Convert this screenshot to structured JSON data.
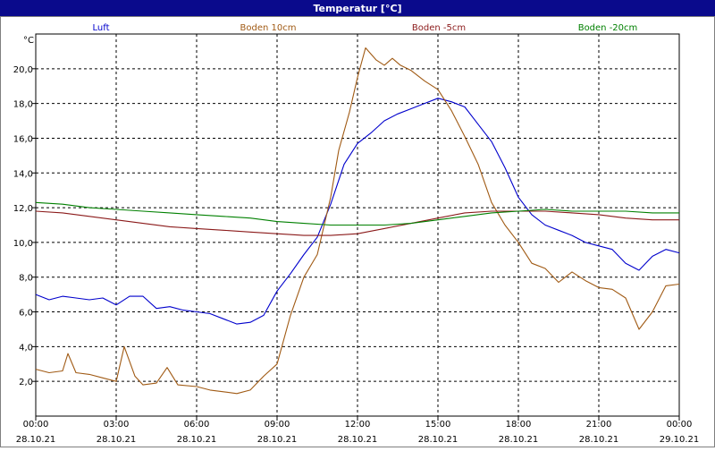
{
  "chart_data": {
    "type": "line",
    "title": "Temperatur [°C]",
    "ylabel": "°C",
    "ylim": [
      0,
      22
    ],
    "yticks": [
      2,
      4,
      6,
      8,
      10,
      12,
      14,
      16,
      18,
      20
    ],
    "ytick_labels": [
      "2,0",
      "4,0",
      "6,0",
      "8,0",
      "10,0",
      "12,0",
      "14,0",
      "16,0",
      "18,0",
      "20,0"
    ],
    "x_ticks": [
      {
        "time": "00:00",
        "date": "28.10.21"
      },
      {
        "time": "03:00",
        "date": "28.10.21"
      },
      {
        "time": "06:00",
        "date": "28.10.21"
      },
      {
        "time": "09:00",
        "date": "28.10.21"
      },
      {
        "time": "12:00",
        "date": "28.10.21"
      },
      {
        "time": "15:00",
        "date": "28.10.21"
      },
      {
        "time": "18:00",
        "date": "28.10.21"
      },
      {
        "time": "21:00",
        "date": "28.10.21"
      },
      {
        "time": "00:00",
        "date": "29.10.21"
      }
    ],
    "x_unit_note": "hours from 00:00 28.10.21",
    "grid": true,
    "legend_position": "top",
    "series": [
      {
        "name": "Luft",
        "color": "#0000cc",
        "points": [
          [
            0.0,
            7.0
          ],
          [
            0.5,
            6.7
          ],
          [
            1.0,
            6.9
          ],
          [
            1.5,
            6.8
          ],
          [
            2.0,
            6.7
          ],
          [
            2.5,
            6.8
          ],
          [
            3.0,
            6.4
          ],
          [
            3.5,
            6.9
          ],
          [
            4.0,
            6.9
          ],
          [
            4.5,
            6.2
          ],
          [
            5.0,
            6.3
          ],
          [
            5.5,
            6.1
          ],
          [
            6.0,
            6.0
          ],
          [
            6.5,
            5.9
          ],
          [
            7.0,
            5.6
          ],
          [
            7.5,
            5.3
          ],
          [
            8.0,
            5.4
          ],
          [
            8.5,
            5.8
          ],
          [
            9.0,
            7.2
          ],
          [
            9.5,
            8.2
          ],
          [
            10.0,
            9.3
          ],
          [
            10.5,
            10.3
          ],
          [
            11.0,
            12.2
          ],
          [
            11.5,
            14.5
          ],
          [
            12.0,
            15.7
          ],
          [
            12.5,
            16.3
          ],
          [
            13.0,
            17.0
          ],
          [
            13.5,
            17.4
          ],
          [
            14.0,
            17.7
          ],
          [
            14.5,
            18.0
          ],
          [
            15.0,
            18.3
          ],
          [
            15.5,
            18.1
          ],
          [
            16.0,
            17.8
          ],
          [
            16.5,
            16.8
          ],
          [
            17.0,
            15.8
          ],
          [
            17.5,
            14.3
          ],
          [
            18.0,
            12.6
          ],
          [
            18.5,
            11.6
          ],
          [
            19.0,
            11.0
          ],
          [
            19.5,
            10.7
          ],
          [
            20.0,
            10.4
          ],
          [
            20.5,
            10.0
          ],
          [
            21.0,
            9.8
          ],
          [
            21.5,
            9.6
          ],
          [
            22.0,
            8.8
          ],
          [
            22.5,
            8.4
          ],
          [
            23.0,
            9.2
          ],
          [
            23.5,
            9.6
          ],
          [
            24.0,
            9.4
          ]
        ]
      },
      {
        "name": "Boden 10cm",
        "color": "#a05a14",
        "points": [
          [
            0.0,
            2.7
          ],
          [
            0.5,
            2.5
          ],
          [
            1.0,
            2.6
          ],
          [
            1.2,
            3.6
          ],
          [
            1.5,
            2.5
          ],
          [
            2.0,
            2.4
          ],
          [
            2.5,
            2.2
          ],
          [
            3.0,
            2.0
          ],
          [
            3.3,
            4.0
          ],
          [
            3.7,
            2.3
          ],
          [
            4.0,
            1.8
          ],
          [
            4.5,
            1.9
          ],
          [
            4.9,
            2.8
          ],
          [
            5.3,
            1.8
          ],
          [
            6.0,
            1.7
          ],
          [
            6.5,
            1.5
          ],
          [
            7.0,
            1.4
          ],
          [
            7.5,
            1.3
          ],
          [
            8.0,
            1.5
          ],
          [
            8.5,
            2.3
          ],
          [
            9.0,
            3.0
          ],
          [
            9.5,
            5.8
          ],
          [
            10.0,
            8.0
          ],
          [
            10.5,
            9.3
          ],
          [
            11.0,
            12.6
          ],
          [
            11.3,
            15.3
          ],
          [
            11.7,
            17.5
          ],
          [
            12.0,
            19.5
          ],
          [
            12.3,
            21.2
          ],
          [
            12.7,
            20.5
          ],
          [
            13.0,
            20.2
          ],
          [
            13.3,
            20.6
          ],
          [
            13.6,
            20.2
          ],
          [
            14.0,
            19.9
          ],
          [
            14.5,
            19.3
          ],
          [
            15.0,
            18.8
          ],
          [
            15.5,
            17.6
          ],
          [
            16.0,
            16.1
          ],
          [
            16.5,
            14.5
          ],
          [
            17.0,
            12.3
          ],
          [
            17.5,
            11.0
          ],
          [
            18.0,
            10.0
          ],
          [
            18.5,
            8.8
          ],
          [
            19.0,
            8.5
          ],
          [
            19.5,
            7.7
          ],
          [
            20.0,
            8.3
          ],
          [
            20.5,
            7.8
          ],
          [
            21.0,
            7.4
          ],
          [
            21.5,
            7.3
          ],
          [
            22.0,
            6.8
          ],
          [
            22.5,
            5.0
          ],
          [
            23.0,
            6.0
          ],
          [
            23.5,
            7.5
          ],
          [
            24.0,
            7.6
          ]
        ]
      },
      {
        "name": "Boden -5cm",
        "color": "#8b1a1a",
        "points": [
          [
            0.0,
            11.8
          ],
          [
            1.0,
            11.7
          ],
          [
            2.0,
            11.5
          ],
          [
            3.0,
            11.3
          ],
          [
            4.0,
            11.1
          ],
          [
            5.0,
            10.9
          ],
          [
            6.0,
            10.8
          ],
          [
            7.0,
            10.7
          ],
          [
            8.0,
            10.6
          ],
          [
            9.0,
            10.5
          ],
          [
            10.0,
            10.4
          ],
          [
            11.0,
            10.4
          ],
          [
            12.0,
            10.5
          ],
          [
            13.0,
            10.8
          ],
          [
            14.0,
            11.1
          ],
          [
            15.0,
            11.4
          ],
          [
            16.0,
            11.7
          ],
          [
            17.0,
            11.8
          ],
          [
            18.0,
            11.8
          ],
          [
            19.0,
            11.8
          ],
          [
            20.0,
            11.7
          ],
          [
            21.0,
            11.6
          ],
          [
            22.0,
            11.4
          ],
          [
            23.0,
            11.3
          ],
          [
            24.0,
            11.3
          ]
        ]
      },
      {
        "name": "Boden -20cm",
        "color": "#008000",
        "points": [
          [
            0.0,
            12.3
          ],
          [
            1.0,
            12.2
          ],
          [
            2.0,
            12.0
          ],
          [
            3.0,
            11.9
          ],
          [
            4.0,
            11.8
          ],
          [
            5.0,
            11.7
          ],
          [
            6.0,
            11.6
          ],
          [
            7.0,
            11.5
          ],
          [
            8.0,
            11.4
          ],
          [
            9.0,
            11.2
          ],
          [
            10.0,
            11.1
          ],
          [
            11.0,
            11.0
          ],
          [
            12.0,
            11.0
          ],
          [
            13.0,
            11.0
          ],
          [
            14.0,
            11.1
          ],
          [
            15.0,
            11.3
          ],
          [
            16.0,
            11.5
          ],
          [
            17.0,
            11.7
          ],
          [
            18.0,
            11.8
          ],
          [
            19.0,
            11.9
          ],
          [
            20.0,
            11.8
          ],
          [
            21.0,
            11.8
          ],
          [
            22.0,
            11.8
          ],
          [
            23.0,
            11.7
          ],
          [
            24.0,
            11.7
          ]
        ]
      }
    ]
  }
}
